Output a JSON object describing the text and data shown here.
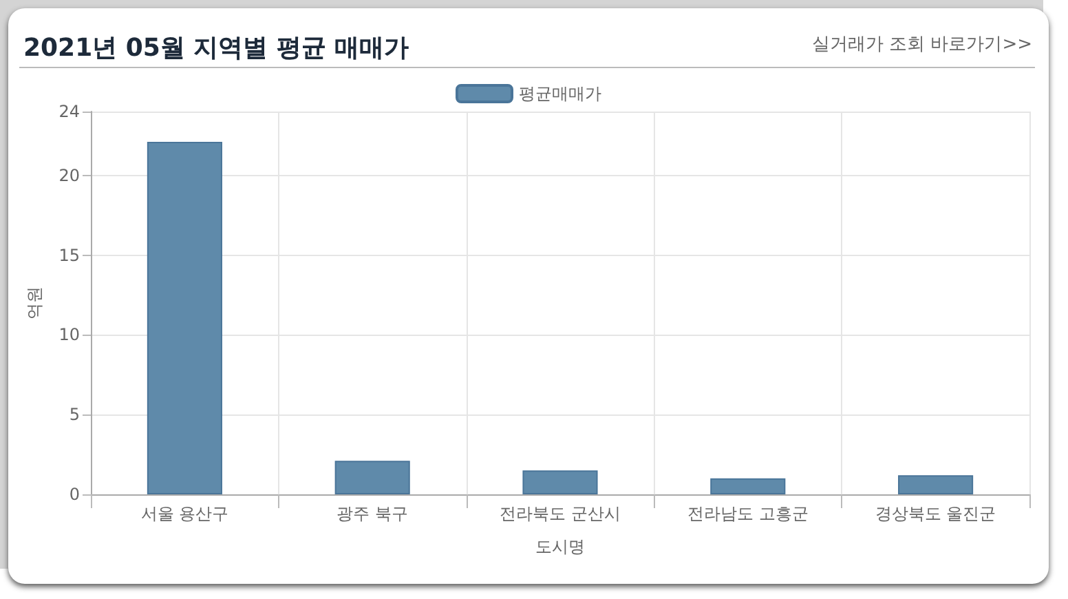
{
  "chart_data": {
    "type": "bar",
    "title": "2021년 05월 지역별 평균 매매가",
    "annotations": [
      "실거래가 조회 바로가기>>"
    ],
    "xlabel": "도시명",
    "ylabel": "억원",
    "categories": [
      "서울 용산구",
      "광주 북구",
      "전라북도 군산시",
      "전라남도 고흥군",
      "경상북도 울진군"
    ],
    "series": [
      {
        "name": "평균매매가",
        "color": "#5f8aaa",
        "values": [
          22.1,
          2.1,
          1.5,
          1.0,
          1.2
        ]
      }
    ],
    "ylim": [
      0,
      24
    ],
    "yticks": [
      0,
      5,
      10,
      15,
      20,
      24
    ],
    "grid": true,
    "legend": "top"
  }
}
